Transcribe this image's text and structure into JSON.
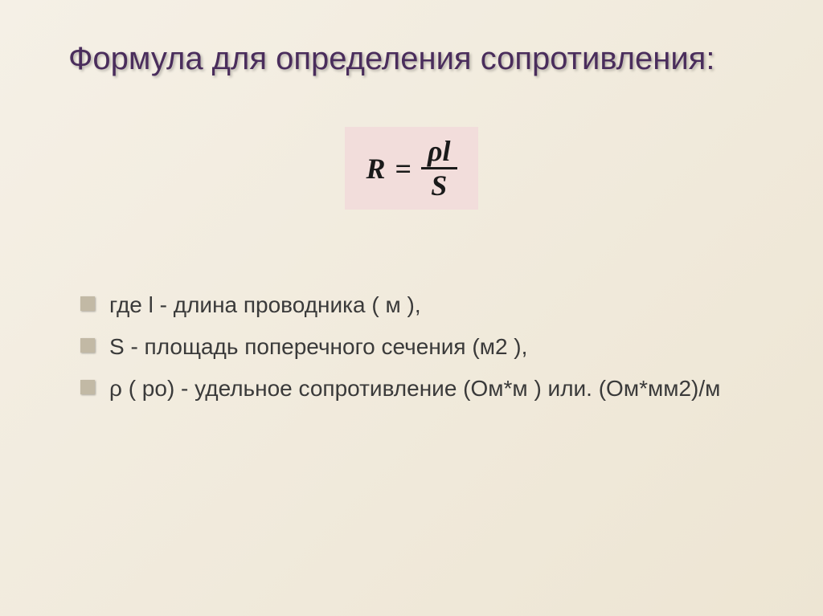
{
  "title": "Формула для определения сопротивления:",
  "formula": {
    "lhs": "R",
    "eq": "=",
    "numerator": "ρl",
    "denominator": "S",
    "background_color": "#f2dddb",
    "text_color": "#1a1a1a",
    "font_size": 36
  },
  "bullets": [
    "где l - длина проводника ( м ),",
    "S - площадь поперечного сечения (м2 ),",
    " ρ ( ро) - удельное сопротивление (Ом*м ) или. (Ом*мм2)/м"
  ],
  "colors": {
    "title_color": "#4a2d5c",
    "body_text_color": "#3a3a3a",
    "bullet_marker_color": "#c2b9a5",
    "background_start": "#f5f0e6",
    "background_end": "#ede5d3"
  },
  "typography": {
    "title_fontsize": 40,
    "body_fontsize": 28
  }
}
